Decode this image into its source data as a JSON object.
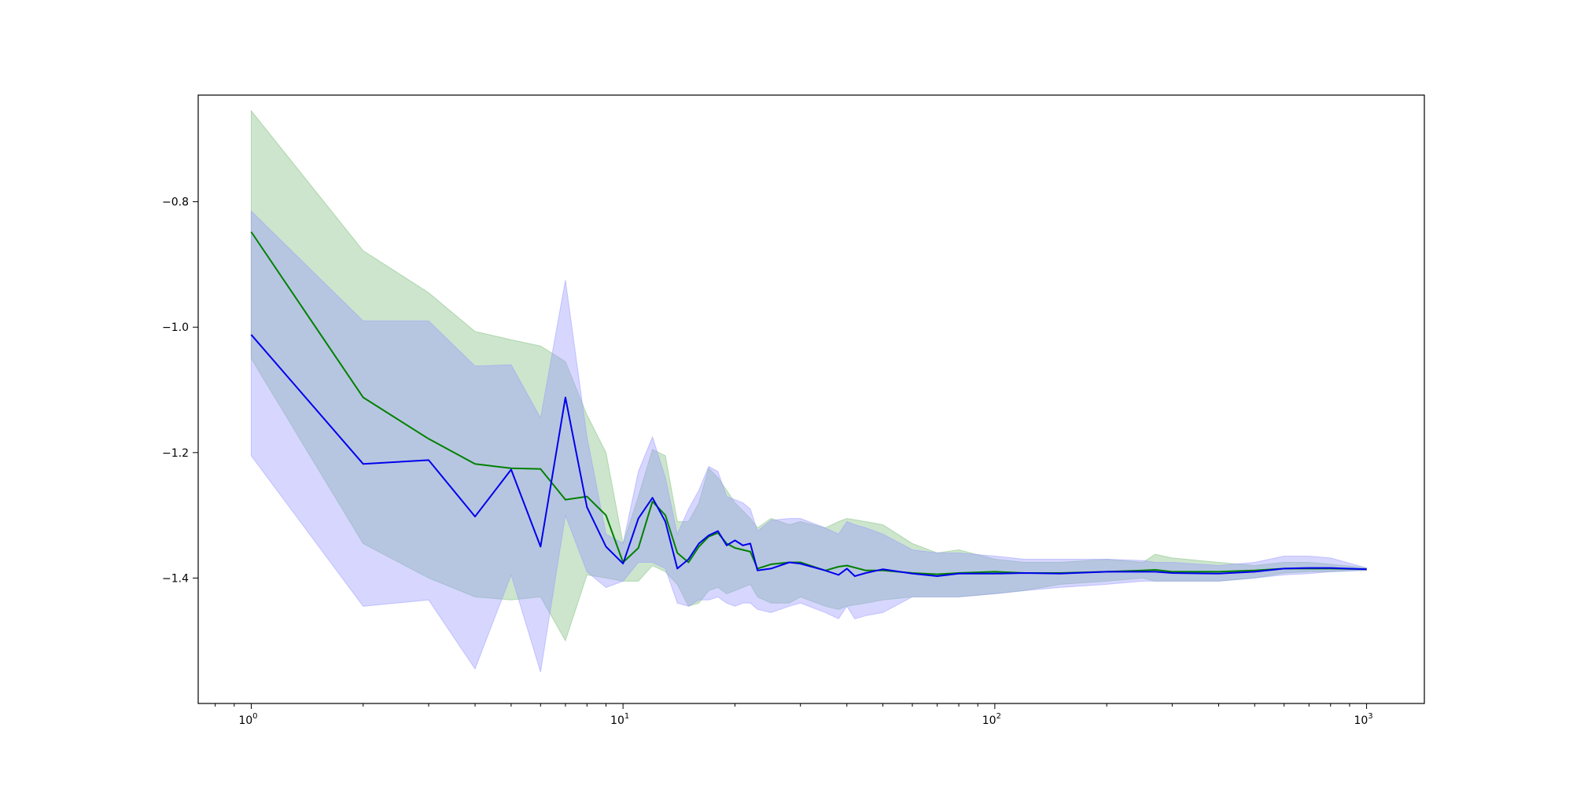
{
  "chart_data": {
    "type": "line",
    "title": "",
    "xlabel": "",
    "ylabel": "",
    "x_scale": "log",
    "xlim": [
      0.72,
      1430
    ],
    "ylim": [
      -1.6,
      -0.63
    ],
    "grid": false,
    "legend": "none",
    "x_ticks": [
      {
        "value": 1,
        "base": "10",
        "exp": "0"
      },
      {
        "value": 10,
        "base": "10",
        "exp": "1"
      },
      {
        "value": 100,
        "base": "10",
        "exp": "2"
      },
      {
        "value": 1000,
        "base": "10",
        "exp": "3"
      }
    ],
    "y_ticks": [
      {
        "value": -0.8,
        "label": "−0.8"
      },
      {
        "value": -1.0,
        "label": "−1.0"
      },
      {
        "value": -1.2,
        "label": "−1.2"
      },
      {
        "value": -1.4,
        "label": "−1.4"
      }
    ],
    "series": [
      {
        "color": "#008000",
        "band_color": "#7fbf7f",
        "x": [
          1,
          2,
          3,
          4,
          5,
          6,
          7,
          8,
          9,
          10,
          11,
          12,
          13,
          14,
          15,
          16,
          17,
          18,
          19,
          20,
          22,
          23,
          25,
          28,
          30,
          35,
          38,
          40,
          45,
          50,
          60,
          70,
          80,
          100,
          120,
          150,
          200,
          250,
          270,
          300,
          400,
          500,
          600,
          700,
          800,
          1000
        ],
        "y": [
          -0.848,
          -1.112,
          -1.178,
          -1.218,
          -1.225,
          -1.226,
          -1.275,
          -1.27,
          -1.3,
          -1.375,
          -1.352,
          -1.278,
          -1.3,
          -1.36,
          -1.375,
          -1.35,
          -1.334,
          -1.328,
          -1.345,
          -1.352,
          -1.358,
          -1.385,
          -1.378,
          -1.375,
          -1.375,
          -1.388,
          -1.382,
          -1.38,
          -1.388,
          -1.388,
          -1.392,
          -1.394,
          -1.392,
          -1.39,
          -1.392,
          -1.392,
          -1.39,
          -1.388,
          -1.387,
          -1.39,
          -1.39,
          -1.388,
          -1.385,
          -1.385,
          -1.385,
          -1.386
        ],
        "upper": [
          -0.655,
          -0.878,
          -0.945,
          -1.007,
          -1.02,
          -1.03,
          -1.055,
          -1.14,
          -1.2,
          -1.345,
          -1.27,
          -1.195,
          -1.205,
          -1.31,
          -1.31,
          -1.28,
          -1.225,
          -1.24,
          -1.26,
          -1.28,
          -1.305,
          -1.32,
          -1.305,
          -1.315,
          -1.31,
          -1.32,
          -1.31,
          -1.305,
          -1.31,
          -1.315,
          -1.345,
          -1.36,
          -1.355,
          -1.37,
          -1.375,
          -1.375,
          -1.37,
          -1.375,
          -1.362,
          -1.368,
          -1.375,
          -1.38,
          -1.375,
          -1.375,
          -1.378,
          -1.384
        ],
        "lower": [
          -1.05,
          -1.345,
          -1.4,
          -1.43,
          -1.435,
          -1.43,
          -1.5,
          -1.395,
          -1.4,
          -1.405,
          -1.405,
          -1.38,
          -1.39,
          -1.41,
          -1.445,
          -1.44,
          -1.42,
          -1.415,
          -1.425,
          -1.42,
          -1.41,
          -1.43,
          -1.44,
          -1.44,
          -1.43,
          -1.445,
          -1.45,
          -1.445,
          -1.44,
          -1.435,
          -1.43,
          -1.43,
          -1.43,
          -1.425,
          -1.42,
          -1.41,
          -1.405,
          -1.4,
          -1.405,
          -1.405,
          -1.405,
          -1.4,
          -1.392,
          -1.39,
          -1.39,
          -1.387
        ]
      },
      {
        "color": "#0000ee",
        "band_color": "#9999ff",
        "x": [
          1,
          2,
          3,
          4,
          5,
          6,
          7,
          8,
          9,
          10,
          11,
          12,
          13,
          14,
          15,
          16,
          17,
          18,
          19,
          20,
          21,
          22,
          23,
          25,
          28,
          30,
          35,
          38,
          40,
          42,
          45,
          50,
          60,
          70,
          80,
          100,
          120,
          150,
          200,
          250,
          270,
          300,
          400,
          500,
          600,
          700,
          800,
          1000
        ],
        "y": [
          -1.012,
          -1.218,
          -1.212,
          -1.302,
          -1.227,
          -1.35,
          -1.112,
          -1.287,
          -1.35,
          -1.377,
          -1.305,
          -1.272,
          -1.31,
          -1.385,
          -1.37,
          -1.345,
          -1.332,
          -1.325,
          -1.348,
          -1.34,
          -1.348,
          -1.345,
          -1.388,
          -1.385,
          -1.375,
          -1.377,
          -1.388,
          -1.395,
          -1.385,
          -1.397,
          -1.392,
          -1.386,
          -1.393,
          -1.397,
          -1.393,
          -1.393,
          -1.392,
          -1.393,
          -1.39,
          -1.39,
          -1.39,
          -1.392,
          -1.393,
          -1.39,
          -1.385,
          -1.384,
          -1.384,
          -1.386
        ],
        "upper": [
          -0.815,
          -0.99,
          -0.99,
          -1.062,
          -1.06,
          -1.145,
          -0.925,
          -1.175,
          -1.33,
          -1.345,
          -1.23,
          -1.175,
          -1.24,
          -1.33,
          -1.29,
          -1.26,
          -1.222,
          -1.23,
          -1.27,
          -1.275,
          -1.28,
          -1.29,
          -1.325,
          -1.308,
          -1.305,
          -1.305,
          -1.32,
          -1.33,
          -1.31,
          -1.315,
          -1.32,
          -1.33,
          -1.355,
          -1.36,
          -1.36,
          -1.365,
          -1.37,
          -1.37,
          -1.37,
          -1.372,
          -1.375,
          -1.375,
          -1.38,
          -1.375,
          -1.365,
          -1.365,
          -1.368,
          -1.384
        ],
        "lower": [
          -1.205,
          -1.445,
          -1.435,
          -1.545,
          -1.395,
          -1.55,
          -1.3,
          -1.39,
          -1.415,
          -1.405,
          -1.375,
          -1.375,
          -1.385,
          -1.44,
          -1.445,
          -1.435,
          -1.435,
          -1.43,
          -1.44,
          -1.445,
          -1.44,
          -1.44,
          -1.45,
          -1.455,
          -1.445,
          -1.44,
          -1.455,
          -1.465,
          -1.445,
          -1.465,
          -1.46,
          -1.455,
          -1.43,
          -1.43,
          -1.43,
          -1.425,
          -1.42,
          -1.415,
          -1.41,
          -1.405,
          -1.405,
          -1.405,
          -1.405,
          -1.4,
          -1.395,
          -1.393,
          -1.39,
          -1.388
        ]
      }
    ]
  }
}
